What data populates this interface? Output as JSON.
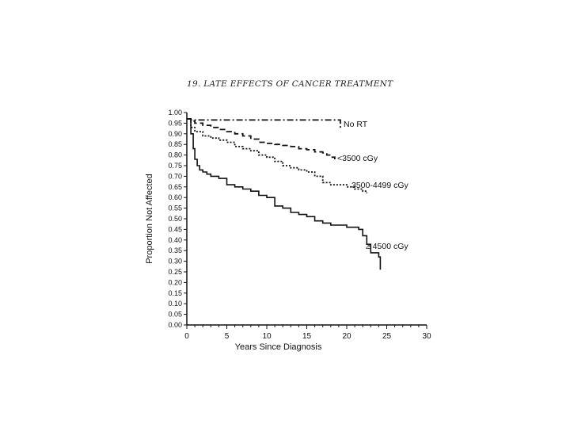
{
  "header": {
    "text": "19. LATE EFFECTS OF CANCER TREATMENT"
  },
  "chart_data": {
    "type": "line",
    "title": "",
    "xlabel": "Years Since Diagnosis",
    "ylabel": "Proportion Not Affected",
    "xlim": [
      0,
      30
    ],
    "ylim": [
      0,
      1
    ],
    "x_ticks": [
      "0",
      "5",
      "10",
      "15",
      "20",
      "25",
      "30"
    ],
    "y_ticks": [
      "0.00",
      "0.05",
      "0.10",
      "0.15",
      "0.20",
      "0.25",
      "0.30",
      "0.35",
      "0.40",
      "0.45",
      "0.50",
      "0.55",
      "0.60",
      "0.65",
      "0.70",
      "0.75",
      "0.80",
      "0.85",
      "0.90",
      "0.95",
      "1.00"
    ],
    "grid": false,
    "series": [
      {
        "name": "No RT",
        "style": "dashdot",
        "color": "#111111",
        "x": [
          0,
          0.5,
          19,
          19.2,
          19.2
        ],
        "y": [
          0.97,
          0.965,
          0.965,
          0.96,
          0.92
        ]
      },
      {
        "name": "<3500 cGy",
        "style": "dashed",
        "color": "#111111",
        "x": [
          0,
          0.5,
          1,
          2,
          3,
          4,
          5,
          6,
          7,
          8,
          9,
          10,
          11,
          12,
          13,
          14,
          15,
          16,
          17,
          17.5,
          18,
          18.5
        ],
        "y": [
          0.97,
          0.96,
          0.95,
          0.94,
          0.93,
          0.92,
          0.91,
          0.9,
          0.89,
          0.875,
          0.86,
          0.855,
          0.85,
          0.845,
          0.84,
          0.83,
          0.825,
          0.815,
          0.81,
          0.8,
          0.79,
          0.78
        ]
      },
      {
        "name": "3500-4499 cGy",
        "style": "dotted",
        "color": "#111111",
        "x": [
          0,
          0.5,
          1,
          2,
          3,
          4,
          5,
          6,
          7,
          8,
          9,
          10,
          11,
          12,
          13,
          14,
          15,
          16,
          17,
          18,
          19,
          20,
          21,
          22,
          22.5
        ],
        "y": [
          0.97,
          0.93,
          0.91,
          0.89,
          0.88,
          0.87,
          0.86,
          0.84,
          0.83,
          0.82,
          0.8,
          0.79,
          0.77,
          0.75,
          0.74,
          0.73,
          0.72,
          0.7,
          0.67,
          0.66,
          0.66,
          0.65,
          0.64,
          0.63,
          0.62
        ]
      },
      {
        "name": "≥ 4500 cGy",
        "style": "solid",
        "color": "#111111",
        "x": [
          0,
          0.5,
          0.8,
          1,
          1.3,
          1.6,
          2,
          2.5,
          3,
          4,
          5,
          6,
          7,
          8,
          9,
          10,
          11,
          12,
          13,
          14,
          15,
          16,
          17,
          18,
          19,
          20,
          21,
          21.5,
          22,
          22.5,
          23,
          24,
          24.2
        ],
        "y": [
          0.97,
          0.9,
          0.83,
          0.78,
          0.75,
          0.73,
          0.72,
          0.71,
          0.7,
          0.69,
          0.66,
          0.65,
          0.64,
          0.63,
          0.61,
          0.6,
          0.56,
          0.55,
          0.53,
          0.52,
          0.51,
          0.49,
          0.48,
          0.47,
          0.47,
          0.46,
          0.46,
          0.45,
          0.42,
          0.38,
          0.34,
          0.32,
          0.26
        ]
      }
    ]
  }
}
